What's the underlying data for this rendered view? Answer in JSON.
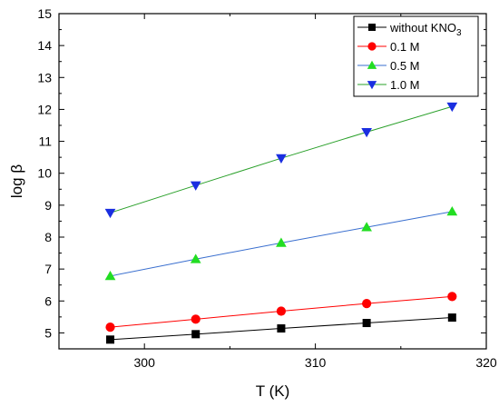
{
  "chart_data": {
    "type": "line",
    "title": "",
    "xlabel": "T (K)",
    "ylabel": "log β",
    "xlim": [
      295,
      320
    ],
    "ylim": [
      4.5,
      15
    ],
    "x_ticks": [
      300,
      310,
      320
    ],
    "y_ticks": [
      5,
      6,
      7,
      8,
      9,
      10,
      11,
      12,
      13,
      14,
      15
    ],
    "grid": false,
    "legend_position": "top-right",
    "x": [
      298,
      303,
      308,
      313,
      318
    ],
    "series": [
      {
        "name": "without KNO3",
        "label_main": "without KNO",
        "label_sub": "3",
        "marker": "square",
        "color": "#000000",
        "line_color": "#000000",
        "values": [
          4.79,
          4.96,
          5.14,
          5.31,
          5.48
        ]
      },
      {
        "name": "0.1 M",
        "marker": "circle",
        "color": "#ff0000",
        "line_color": "#ff0000",
        "values": [
          5.18,
          5.43,
          5.68,
          5.92,
          6.14
        ]
      },
      {
        "name": "0.5 M",
        "marker": "triangle-up",
        "color": "#22dd22",
        "line_color": "#3a6fcf",
        "values": [
          6.78,
          7.31,
          7.82,
          8.31,
          8.8
        ]
      },
      {
        "name": "1.0 M",
        "marker": "triangle-down",
        "color": "#1a2ee0",
        "line_color": "#2aa02a",
        "values": [
          8.76,
          9.62,
          10.47,
          11.29,
          12.09
        ]
      }
    ]
  }
}
